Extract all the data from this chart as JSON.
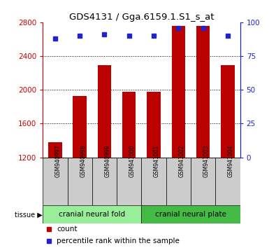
{
  "title": "GDS4131 / Gga.6159.1.S1_s_at",
  "samples": [
    "GSM940997",
    "GSM940998",
    "GSM940999",
    "GSM941000",
    "GSM941001",
    "GSM941002",
    "GSM941003",
    "GSM941004"
  ],
  "counts": [
    1380,
    1930,
    2290,
    1980,
    1980,
    2760,
    2760,
    2290
  ],
  "percentile_ranks": [
    88,
    90,
    91,
    90,
    90,
    96,
    96,
    90
  ],
  "ylim_left": [
    1200,
    2800
  ],
  "ylim_right": [
    0,
    100
  ],
  "yticks_left": [
    1200,
    1600,
    2000,
    2400,
    2800
  ],
  "yticks_right": [
    0,
    25,
    50,
    75,
    100
  ],
  "bar_color": "#bb0000",
  "dot_color": "#2222cc",
  "bar_bottom": 1200,
  "tissue_groups": [
    {
      "label": "cranial neural fold",
      "start": 0,
      "end": 4,
      "color": "#99ee99"
    },
    {
      "label": "cranial neural plate",
      "start": 4,
      "end": 8,
      "color": "#44bb44"
    }
  ],
  "tissue_label": "tissue",
  "xlabel_color": "#cc0000",
  "ylabel_right_color": "#2222cc",
  "sample_box_color": "#cccccc",
  "legend_count_color": "#bb0000",
  "legend_pct_color": "#2222cc"
}
